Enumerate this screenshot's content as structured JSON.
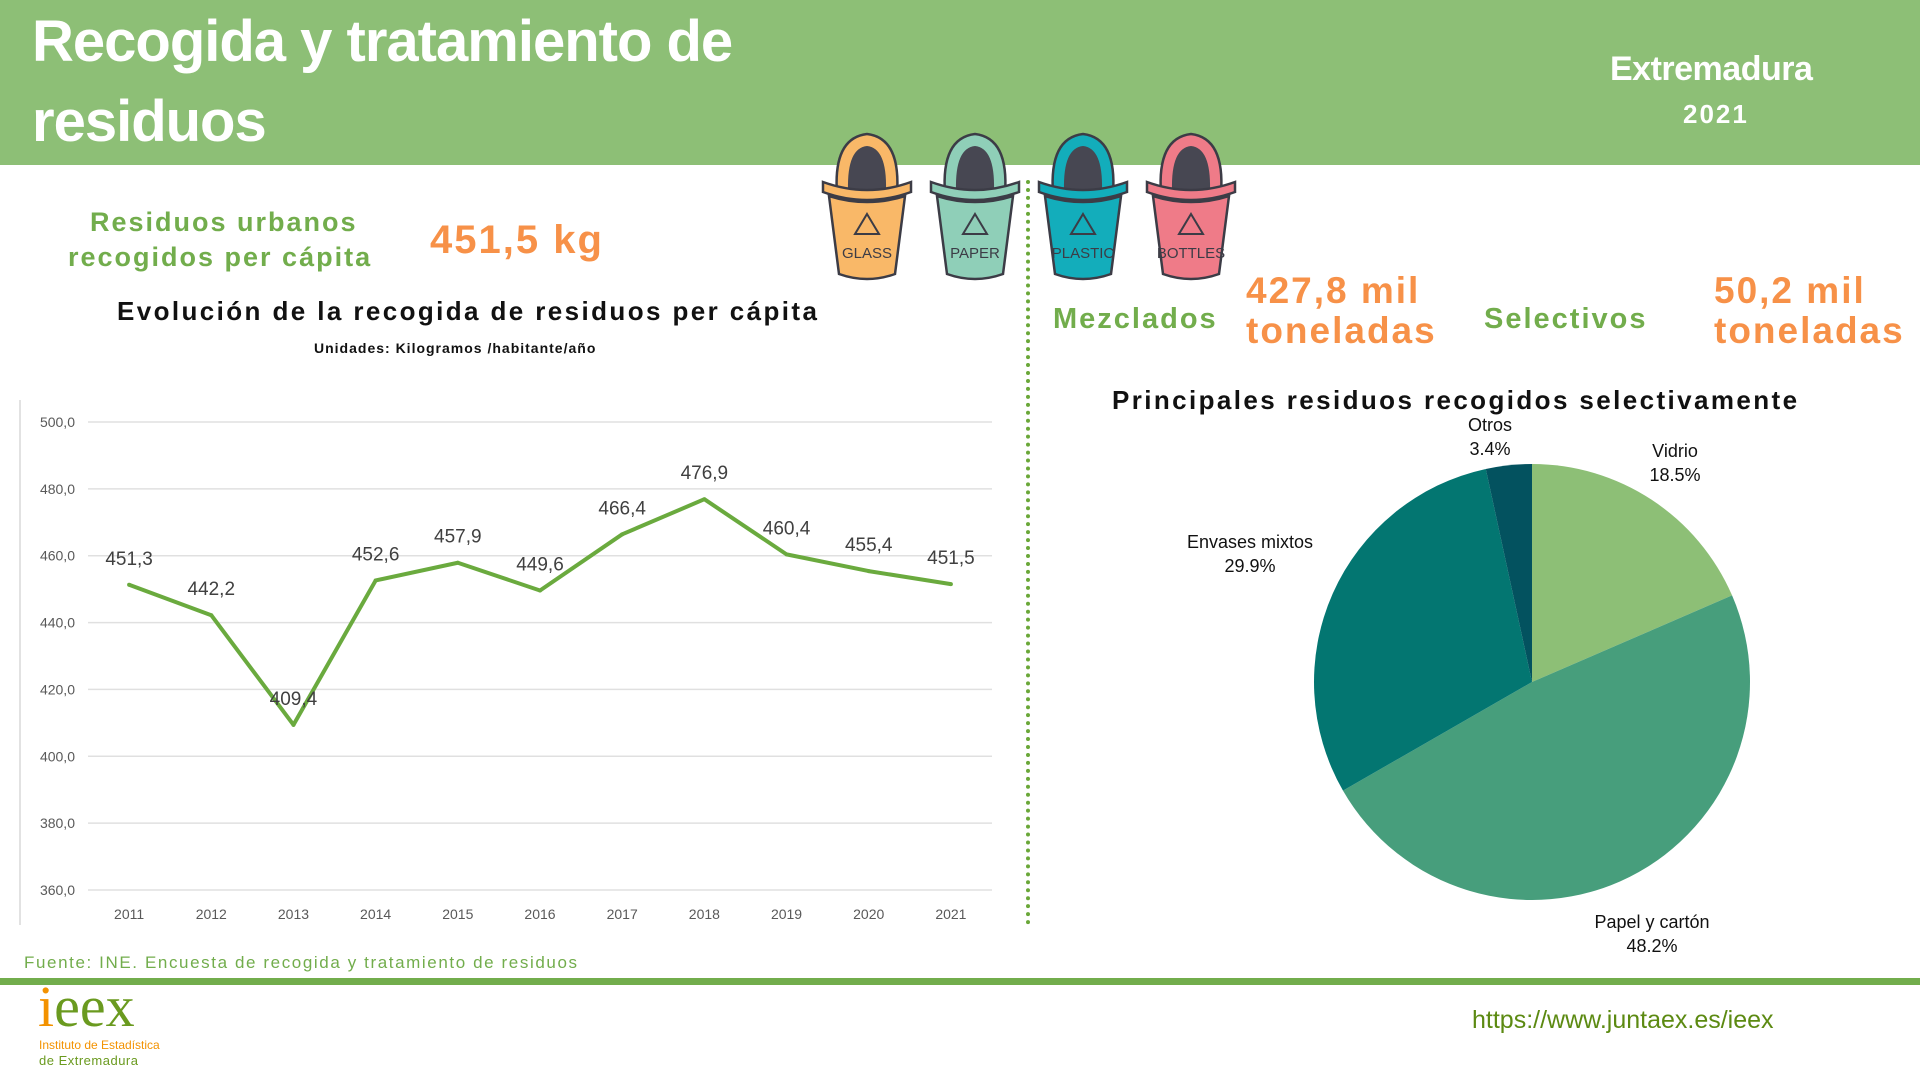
{
  "header": {
    "title": "Recogida y tratamiento de residuos",
    "region": "Extremadura",
    "year": "2021"
  },
  "bins": [
    {
      "label": "GLASS",
      "color": "#f9b868"
    },
    {
      "label": "PAPER",
      "color": "#8fcfb8"
    },
    {
      "label": "PLASTIC",
      "color": "#13adbb"
    },
    {
      "label": "BOTTLES",
      "color": "#ef7b88"
    }
  ],
  "kpis": {
    "per_capita_label_1": "Residuos urbanos",
    "per_capita_label_2": "recogidos per cápita",
    "per_capita_value": "451,5 kg",
    "mixed_label": "Mezclados",
    "mixed_value_1": "427,8 mil",
    "mixed_value_2": "toneladas",
    "selective_label": "Selectivos",
    "selective_value_1": "50,2 mil",
    "selective_value_2": "toneladas"
  },
  "colors": {
    "header": "#8dbf76",
    "accent_green": "#72ad4c",
    "accent_orange": "#f79148",
    "line": "#6aaa3e"
  },
  "chart_data": [
    {
      "type": "line",
      "title": "Evolución de la recogida de residuos per cápita",
      "subtitle": "Unidades: Kilogramos /habitante/año",
      "xlabel": "",
      "ylabel": "",
      "x": [
        "2011",
        "2012",
        "2013",
        "2014",
        "2015",
        "2016",
        "2017",
        "2018",
        "2019",
        "2020",
        "2021"
      ],
      "series": [
        {
          "name": "Residuos per cápita",
          "values": [
            451.3,
            442.2,
            409.4,
            452.6,
            457.9,
            449.6,
            466.4,
            476.9,
            460.4,
            455.4,
            451.5
          ],
          "labels": [
            "451,3",
            "442,2",
            "409,4",
            "452,6",
            "457,9",
            "449,6",
            "466,4",
            "476,9",
            "460,4",
            "455,4",
            "451,5"
          ]
        }
      ],
      "ylim": [
        360,
        500
      ],
      "yticks": [
        500,
        480,
        460,
        440,
        420,
        400,
        380,
        360
      ],
      "ytick_labels": [
        "500,0",
        "480,0",
        "460,0",
        "440,0",
        "420,0",
        "400,0",
        "380,0",
        "360,0"
      ],
      "grid": true,
      "legend": "none"
    },
    {
      "type": "pie",
      "title": "Principales residuos recogidos selectivamente",
      "slices": [
        {
          "label": "Vidrio",
          "value": 18.5,
          "text": "18.5%",
          "color": "#8dbf76"
        },
        {
          "label": "Papel y cartón",
          "value": 48.2,
          "text": "48.2%",
          "color": "#479e7c"
        },
        {
          "label": "Envases mixtos",
          "value": 29.9,
          "text": "29.9%",
          "color": "#037671"
        },
        {
          "label": "Otros",
          "value": 3.4,
          "text": "3.4%",
          "color": "#03525f"
        }
      ],
      "legend": "none"
    }
  ],
  "footer": {
    "source": "Fuente: INE. Encuesta de recogida y tratamiento de residuos",
    "logo_word_i": "i",
    "logo_word_rest": "eex",
    "logo_line1": "Instituto de Estadística",
    "logo_line2": "de Extremadura",
    "url": "https://www.juntaex.es/ieex"
  }
}
